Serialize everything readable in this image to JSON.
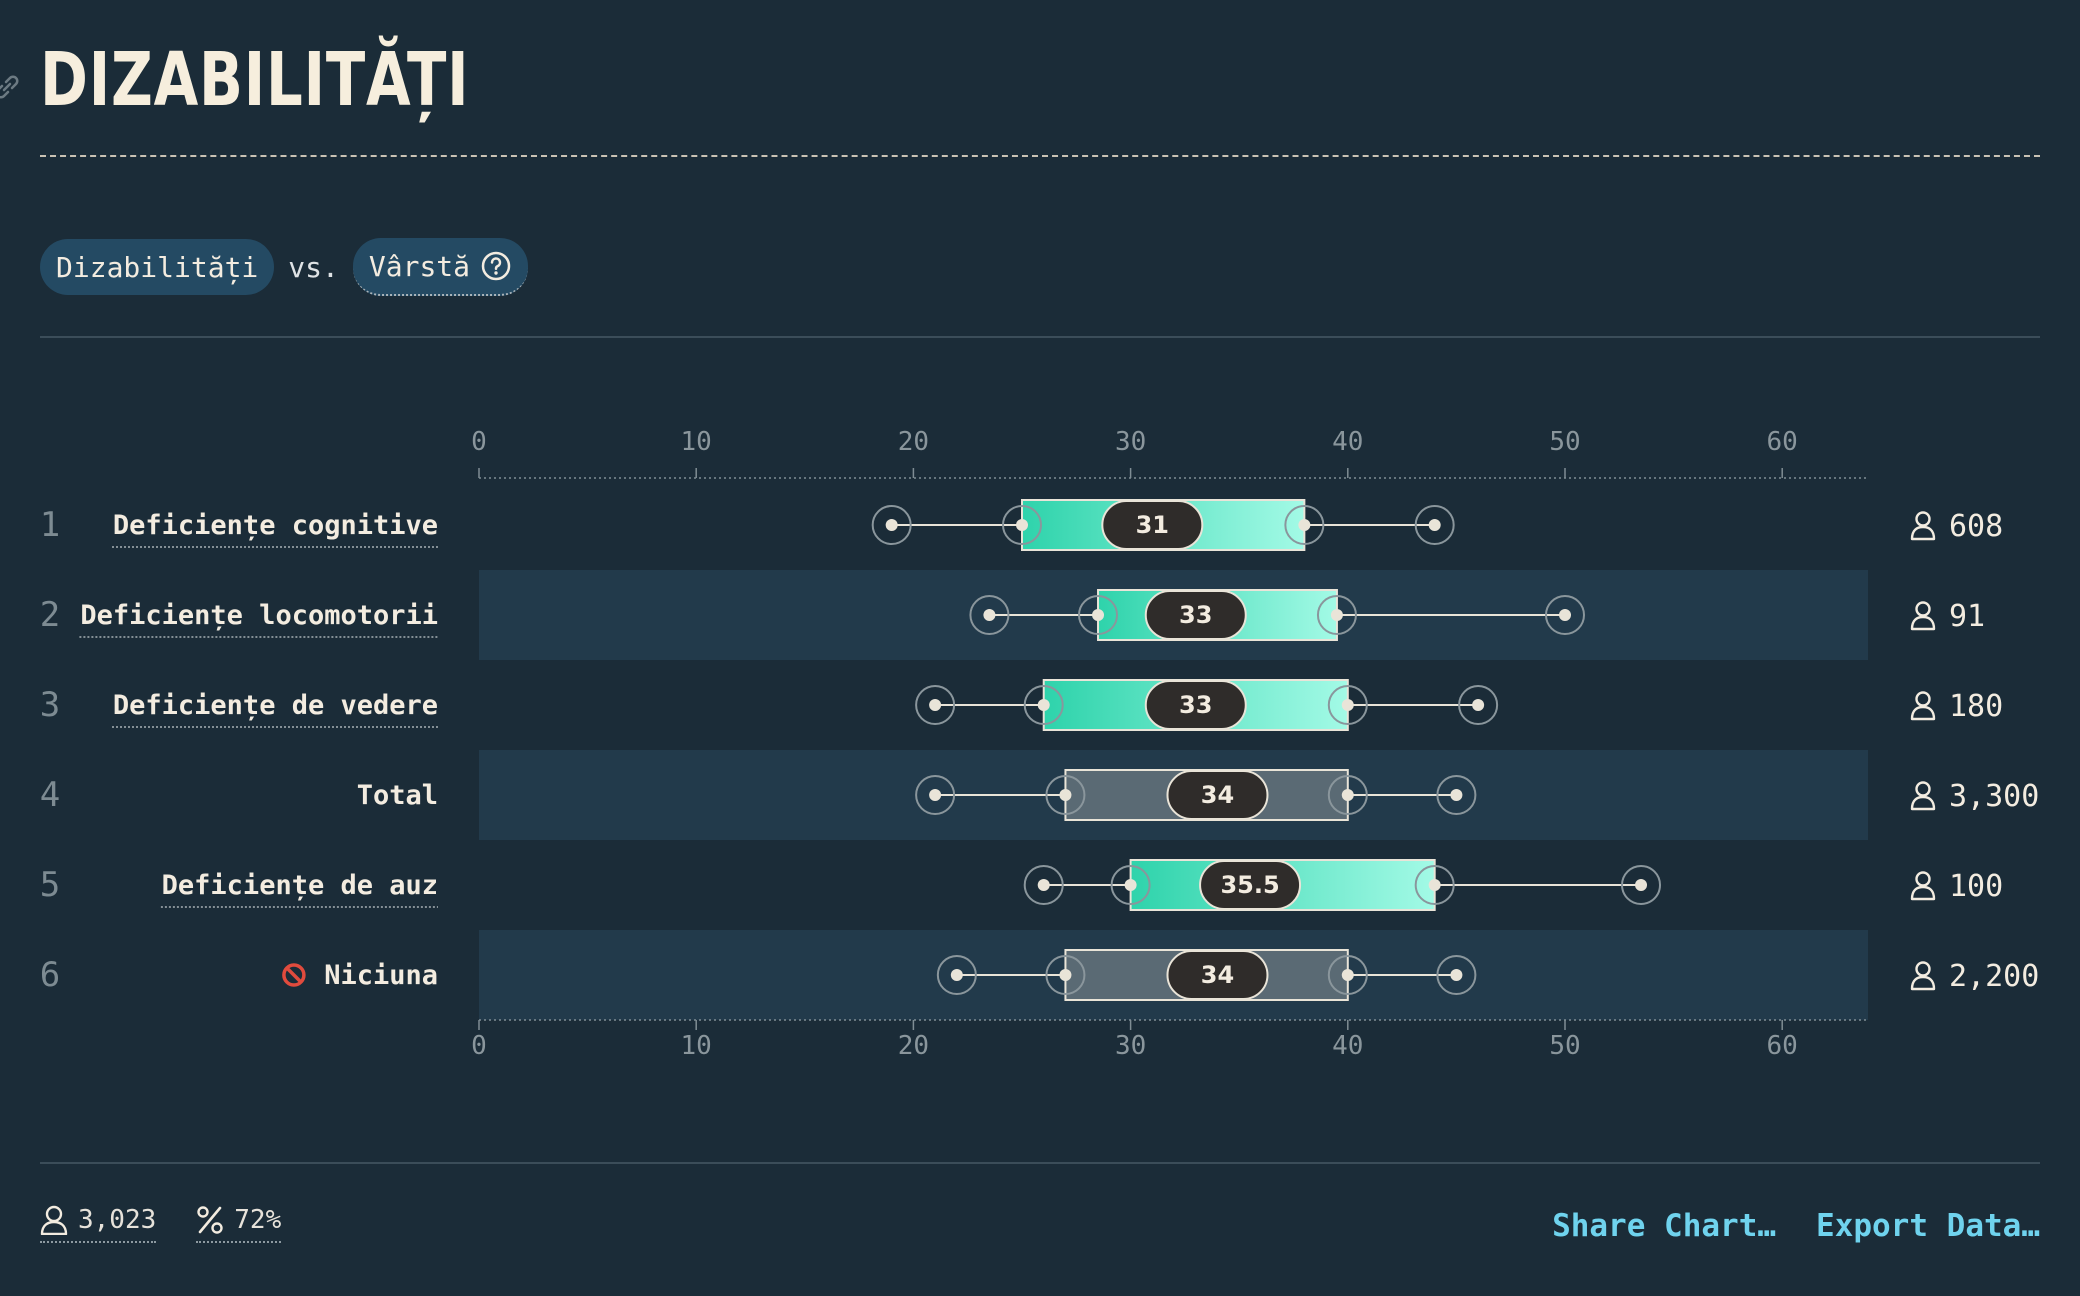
{
  "header": {
    "title": "DIZABILITĂȚI"
  },
  "controls": {
    "group_label": "Dizabilități",
    "vs_label": "vs.",
    "measure_label": "Vârstă"
  },
  "footer": {
    "count": "3,023",
    "percent": "72%",
    "share_label": "Share Chart…",
    "export_label": "Export Data…"
  },
  "colors": {
    "background": "#1b2c38",
    "band": "#223a4b",
    "box_gradient_start": "#2ed3ab",
    "box_gradient_end": "#a3fae6",
    "neutral_box": "#5a6a74",
    "median_pill": "#2f2c2a",
    "link": "#6fd3ee"
  },
  "chart_data": {
    "type": "boxplot",
    "orientation": "horizontal",
    "xlim": [
      0,
      64
    ],
    "ticks": [
      0,
      10,
      20,
      30,
      40,
      50,
      60
    ],
    "grid": false,
    "rows": [
      {
        "rank": "1",
        "label": "Deficiențe cognitive",
        "min": 19,
        "q1": 25,
        "median": 31,
        "q3": 38,
        "max": 44,
        "count": "608",
        "highlight": true,
        "icon": ""
      },
      {
        "rank": "2",
        "label": "Deficiențe locomotorii",
        "min": 23.5,
        "q1": 28.5,
        "median": 33,
        "q3": 39.5,
        "max": 50,
        "count": "91",
        "highlight": true,
        "icon": ""
      },
      {
        "rank": "3",
        "label": "Deficiențe de vedere",
        "min": 21,
        "q1": 26,
        "median": 33,
        "q3": 40,
        "max": 46,
        "count": "180",
        "highlight": true,
        "icon": ""
      },
      {
        "rank": "4",
        "label": "Total",
        "min": 21,
        "q1": 27,
        "median": 34,
        "q3": 40,
        "max": 45,
        "count": "3,300",
        "highlight": false,
        "icon": ""
      },
      {
        "rank": "5",
        "label": "Deficiențe de auz",
        "min": 26,
        "q1": 30,
        "median": 35.5,
        "q3": 44,
        "max": 53.5,
        "count": "100",
        "highlight": true,
        "icon": ""
      },
      {
        "rank": "6",
        "label": "Niciuna",
        "min": 22,
        "q1": 27,
        "median": 34,
        "q3": 40,
        "max": 45,
        "count": "2,200",
        "highlight": false,
        "icon": "prohibited-icon"
      }
    ]
  }
}
